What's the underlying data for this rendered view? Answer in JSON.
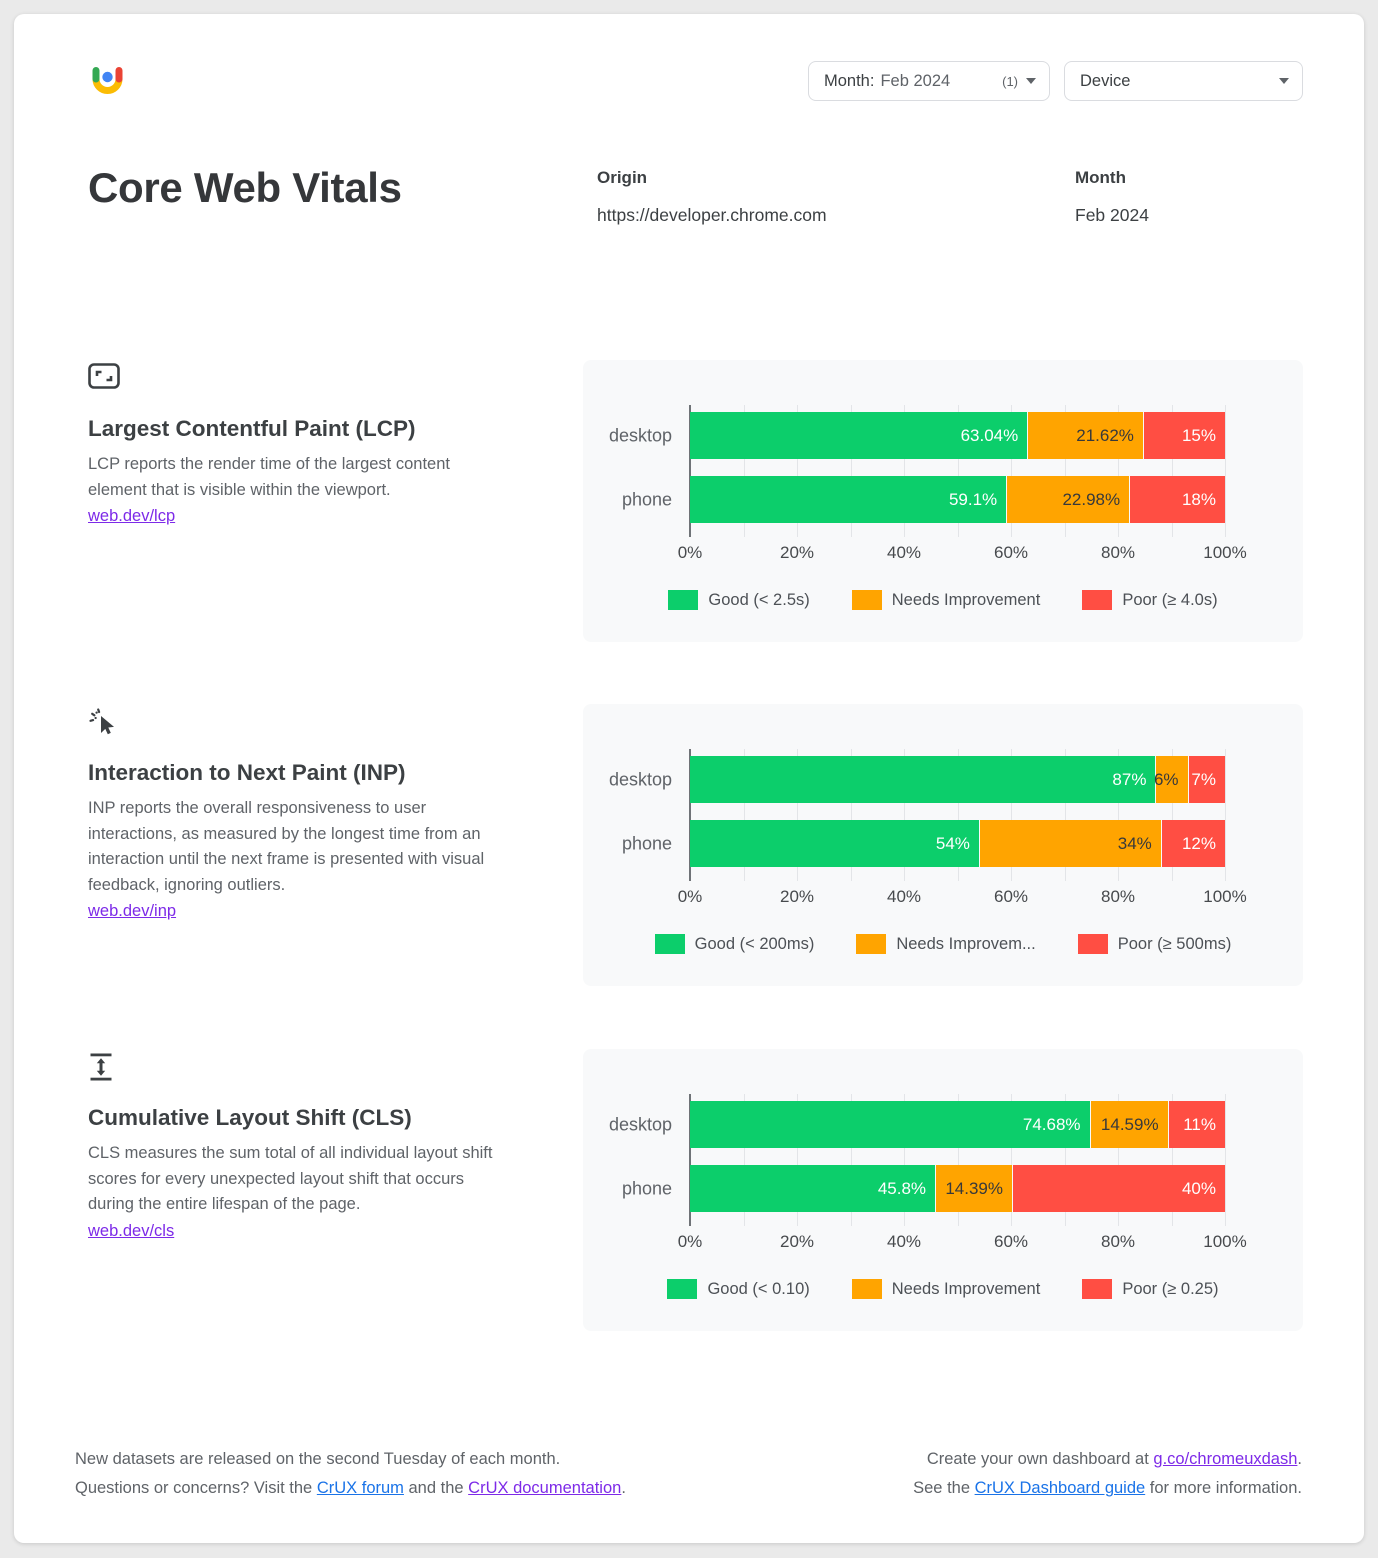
{
  "page": {
    "background": "#eaeaea",
    "card_background": "#ffffff"
  },
  "header": {
    "month_filter": {
      "label": "Month:",
      "value": "Feb 2024",
      "count": "(1)"
    },
    "device_filter": {
      "label": "Device"
    },
    "title": "Core Web Vitals",
    "origin": {
      "label": "Origin",
      "value": "https://developer.chrome.com"
    },
    "month": {
      "label": "Month",
      "value": "Feb 2024"
    }
  },
  "colors": {
    "good": "#0cce6b",
    "needs_improvement": "#ffa400",
    "poor": "#ff4e43"
  },
  "metrics": [
    {
      "id": "lcp",
      "title": "Largest Contentful Paint (LCP)",
      "description": "LCP reports the render time of the largest content element that is visible within the viewport.",
      "link": "web.dev/lcp"
    },
    {
      "id": "inp",
      "title": "Interaction to Next Paint (INP)",
      "description": "INP reports the overall responsiveness to user interactions, as measured by the longest time from an interaction until the next frame is presented with visual feedback, ignoring outliers.",
      "link": "web.dev/inp"
    },
    {
      "id": "cls",
      "title": "Cumulative Layout Shift (CLS)",
      "description": "CLS measures the sum total of all individual layout shift scores for every unexpected layout shift that occurs during the entire lifespan of the page.",
      "link": "web.dev/cls"
    }
  ],
  "chart_data": [
    {
      "type": "bar",
      "stacked": true,
      "horizontal": true,
      "metric": "LCP",
      "categories": [
        "desktop",
        "phone"
      ],
      "series": [
        {
          "name": "Good (< 2.5s)",
          "legend_label": "Good (< 2.5s)",
          "color_key": "good",
          "values": [
            63.04,
            59.1
          ],
          "labels": [
            "63.04%",
            "59.1%"
          ]
        },
        {
          "name": "Needs Improvement",
          "legend_label": "Needs Improvement",
          "color_key": "needs_improvement",
          "values": [
            21.62,
            22.98
          ],
          "labels": [
            "21.62%",
            "22.98%"
          ]
        },
        {
          "name": "Poor (≥ 4.0s)",
          "legend_label": "Poor (≥ 4.0s)",
          "color_key": "poor",
          "values": [
            15.34,
            17.92
          ],
          "labels": [
            "15%",
            "18%"
          ]
        }
      ],
      "x_ticks": [
        "0%",
        "20%",
        "40%",
        "60%",
        "80%",
        "100%"
      ],
      "xlim": [
        0,
        100
      ],
      "grid": true,
      "legend_position": "bottom"
    },
    {
      "type": "bar",
      "stacked": true,
      "horizontal": true,
      "metric": "INP",
      "categories": [
        "desktop",
        "phone"
      ],
      "series": [
        {
          "name": "Good (< 200ms)",
          "legend_label": "Good (< 200ms)",
          "color_key": "good",
          "values": [
            87,
            54
          ],
          "labels": [
            "87%",
            "54%"
          ]
        },
        {
          "name": "Needs Improvement",
          "legend_label": "Needs Improvem...",
          "color_key": "needs_improvement",
          "values": [
            6,
            34
          ],
          "labels": [
            "6%",
            "34%"
          ]
        },
        {
          "name": "Poor (≥ 500ms)",
          "legend_label": "Poor (≥ 500ms)",
          "color_key": "poor",
          "values": [
            7,
            12
          ],
          "labels": [
            "7%",
            "12%"
          ]
        }
      ],
      "x_ticks": [
        "0%",
        "20%",
        "40%",
        "60%",
        "80%",
        "100%"
      ],
      "xlim": [
        0,
        100
      ],
      "grid": true,
      "legend_position": "bottom"
    },
    {
      "type": "bar",
      "stacked": true,
      "horizontal": true,
      "metric": "CLS",
      "categories": [
        "desktop",
        "phone"
      ],
      "series": [
        {
          "name": "Good (< 0.10)",
          "legend_label": "Good (< 0.10)",
          "color_key": "good",
          "values": [
            74.68,
            45.8
          ],
          "labels": [
            "74.68%",
            "45.8%"
          ]
        },
        {
          "name": "Needs Improvement",
          "legend_label": "Needs Improvement",
          "color_key": "needs_improvement",
          "values": [
            14.59,
            14.39
          ],
          "labels": [
            "14.59%",
            "14.39%"
          ]
        },
        {
          "name": "Poor (≥ 0.25)",
          "legend_label": "Poor (≥ 0.25)",
          "color_key": "poor",
          "values": [
            10.73,
            39.81
          ],
          "labels": [
            "11%",
            "40%"
          ]
        }
      ],
      "x_ticks": [
        "0%",
        "20%",
        "40%",
        "60%",
        "80%",
        "100%"
      ],
      "xlim": [
        0,
        100
      ],
      "grid": true,
      "legend_position": "bottom"
    }
  ],
  "footer": {
    "left_line1": "New datasets are released on the second Tuesday of each month.",
    "left_line2_pre": "Questions or concerns? Visit the ",
    "forum_link": "CrUX forum",
    "left_line2_mid": " and the ",
    "doc_link": "CrUX documentation",
    "left_line2_end": ".",
    "right_line1_pre": "Create your own dashboard at ",
    "dash_link": "g.co/chromeuxdash",
    "right_line1_end": ".",
    "right_line2_pre": "See the ",
    "guide_link": "CrUX Dashboard guide",
    "right_line2_end": " for more information."
  }
}
